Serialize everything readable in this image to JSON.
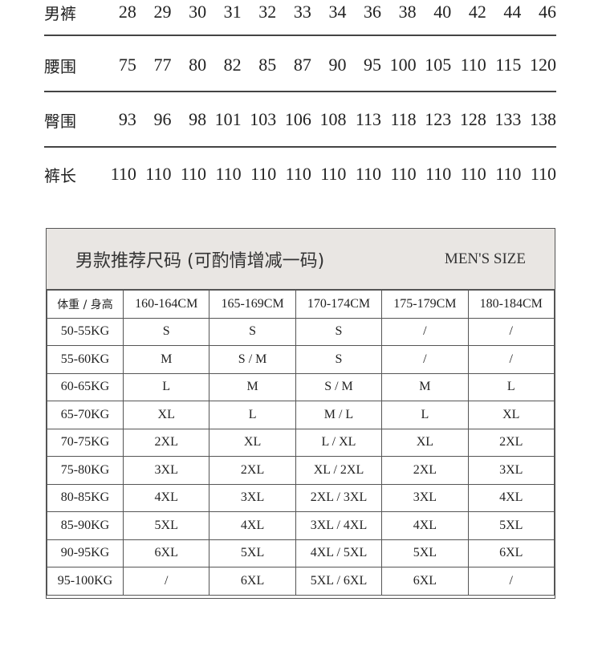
{
  "pants_table": {
    "rows": [
      {
        "label": "男裤",
        "values": [
          "28",
          "29",
          "30",
          "31",
          "32",
          "33",
          "34",
          "36",
          "38",
          "40",
          "42",
          "44",
          "46"
        ]
      },
      {
        "label": "腰围",
        "values": [
          "75",
          "77",
          "80",
          "82",
          "85",
          "87",
          "90",
          "95",
          "100",
          "105",
          "110",
          "115",
          "120"
        ]
      },
      {
        "label": "臀围",
        "values": [
          "93",
          "96",
          "98",
          "101",
          "103",
          "106",
          "108",
          "113",
          "118",
          "123",
          "128",
          "133",
          "138"
        ]
      },
      {
        "label": "裤长",
        "values": [
          "110",
          "110",
          "110",
          "110",
          "110",
          "110",
          "110",
          "110",
          "110",
          "110",
          "110",
          "110",
          "110"
        ]
      }
    ]
  },
  "size_chart": {
    "title": "男款推荐尺码 (可酌情增减一码)",
    "title_en": "MEN'S SIZE",
    "banner_color": "#e9e6e3",
    "corner_header": "体重 / 身高",
    "heights": [
      "160-164CM",
      "165-169CM",
      "170-174CM",
      "175-179CM",
      "180-184CM"
    ],
    "rows": [
      {
        "weight": "50-55KG",
        "sizes": [
          "S",
          "S",
          "S",
          "/",
          "/"
        ]
      },
      {
        "weight": "55-60KG",
        "sizes": [
          "M",
          "S / M",
          "S",
          "/",
          "/"
        ]
      },
      {
        "weight": "60-65KG",
        "sizes": [
          "L",
          "M",
          "S / M",
          "M",
          "L"
        ]
      },
      {
        "weight": "65-70KG",
        "sizes": [
          "XL",
          "L",
          "M / L",
          "L",
          "XL"
        ]
      },
      {
        "weight": "70-75KG",
        "sizes": [
          "2XL",
          "XL",
          "L / XL",
          "XL",
          "2XL"
        ]
      },
      {
        "weight": "75-80KG",
        "sizes": [
          "3XL",
          "2XL",
          "XL / 2XL",
          "2XL",
          "3XL"
        ]
      },
      {
        "weight": "80-85KG",
        "sizes": [
          "4XL",
          "3XL",
          "2XL / 3XL",
          "3XL",
          "4XL"
        ]
      },
      {
        "weight": "85-90KG",
        "sizes": [
          "5XL",
          "4XL",
          "3XL / 4XL",
          "4XL",
          "5XL"
        ]
      },
      {
        "weight": "90-95KG",
        "sizes": [
          "6XL",
          "5XL",
          "4XL / 5XL",
          "5XL",
          "6XL"
        ]
      },
      {
        "weight": "95-100KG",
        "sizes": [
          "/",
          "6XL",
          "5XL / 6XL",
          "6XL",
          "/"
        ]
      }
    ]
  }
}
